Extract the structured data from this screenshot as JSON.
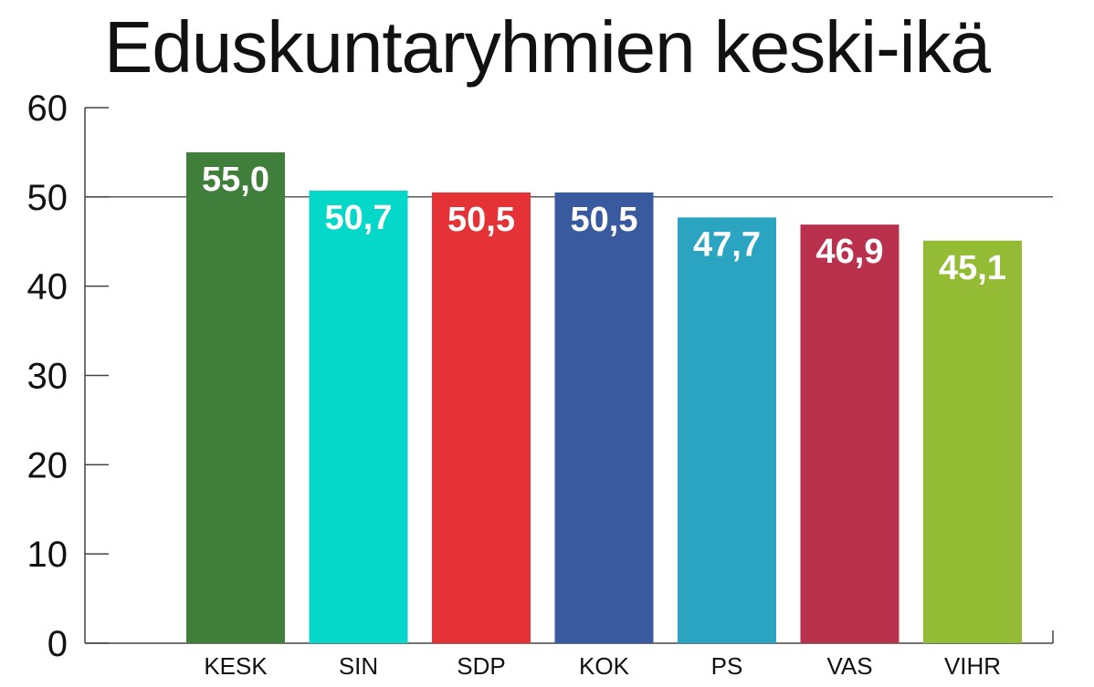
{
  "chart_data": {
    "type": "bar",
    "title": "Eduskuntaryhmien keski-ikä",
    "xlabel": "",
    "ylabel": "",
    "ylim": [
      0,
      60
    ],
    "yticks": [
      0,
      10,
      20,
      30,
      40,
      50,
      60
    ],
    "grid_lines": [
      50
    ],
    "categories": [
      "KESK",
      "SIN",
      "SDP",
      "KOK",
      "PS",
      "VAS",
      "VIHR"
    ],
    "values": [
      55.0,
      50.7,
      50.5,
      50.5,
      47.7,
      46.9,
      45.1
    ],
    "value_labels": [
      "55,0",
      "50,7",
      "50,5",
      "50,5",
      "47,7",
      "46,9",
      "45,1"
    ],
    "colors": [
      "#3f7f3b",
      "#05d8c8",
      "#e53236",
      "#3a5aa0",
      "#2aa4c0",
      "#b9314c",
      "#93bc34"
    ]
  }
}
